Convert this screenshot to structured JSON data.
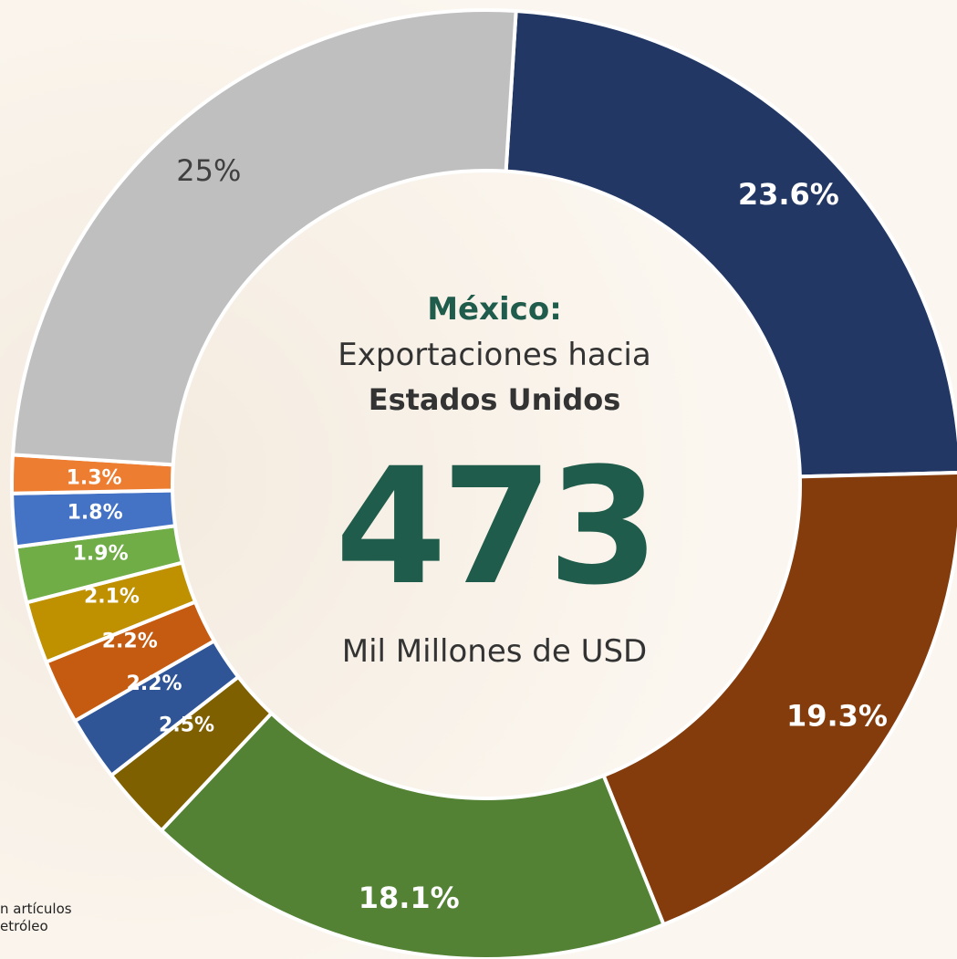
{
  "chart_data": {
    "type": "donut",
    "title": "México:",
    "subtitle_line1": "Exportaciones hacia",
    "subtitle_line2": "Estados Unidos",
    "total_value": "473",
    "total_unit": "Mil Millones de USD",
    "slices": [
      {
        "value": 23.6,
        "label": "23.6%",
        "color": "#223764",
        "label_color": "#ffffff"
      },
      {
        "value": 19.3,
        "label": "19.3%",
        "color": "#843c0c",
        "label_color": "#ffffff"
      },
      {
        "value": 18.1,
        "label": "18.1%",
        "color": "#548235",
        "label_color": "#ffffff"
      },
      {
        "value": 2.5,
        "label": "2.5%",
        "color": "#7f6000",
        "label_color": "#ffffff"
      },
      {
        "value": 2.2,
        "label": "2.2%",
        "color": "#2f5597",
        "label_color": "#ffffff"
      },
      {
        "value": 2.2,
        "label": "2.2%",
        "color": "#c55a11",
        "label_color": "#ffffff"
      },
      {
        "value": 2.1,
        "label": "2.1%",
        "color": "#bf9000",
        "label_color": "#ffffff"
      },
      {
        "value": 1.9,
        "label": "1.9%",
        "color": "#70ad47",
        "label_color": "#ffffff"
      },
      {
        "value": 1.8,
        "label": "1.8%",
        "color": "#4472c4",
        "label_color": "#ffffff"
      },
      {
        "value": 1.3,
        "label": "1.3%",
        "color": "#ed7d31",
        "label_color": "#ffffff"
      },
      {
        "value": 25,
        "label": "25%",
        "color": "#bfbfbf",
        "label_color": "#404040"
      }
    ],
    "colors": {
      "accent": "#1f5c4b",
      "text": "#333333",
      "background": "#fbf6ef"
    }
  },
  "footnote": {
    "line1": "n artículos",
    "line2": "etróleo"
  }
}
